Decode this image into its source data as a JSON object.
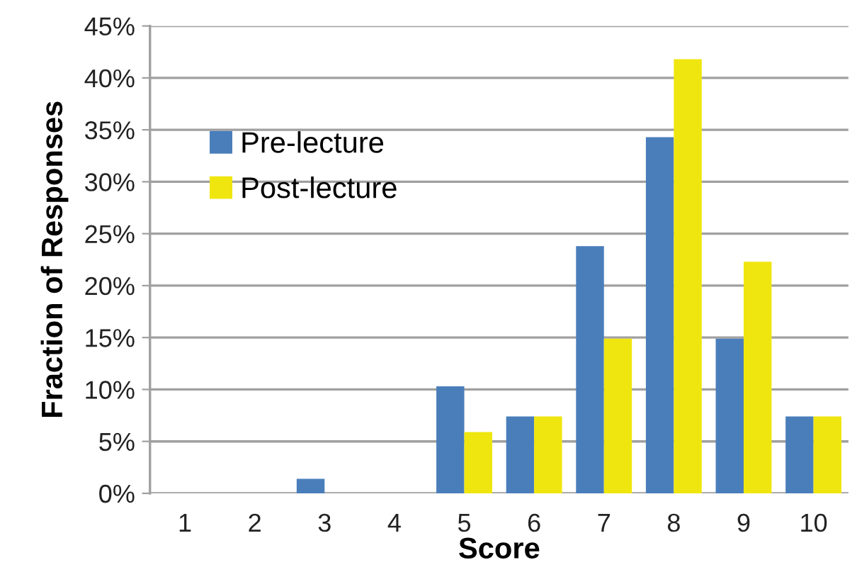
{
  "chart_data": {
    "type": "bar",
    "xlabel": "Score",
    "ylabel": "Fraction of Responses",
    "categories": [
      "1",
      "2",
      "3",
      "4",
      "5",
      "6",
      "7",
      "8",
      "9",
      "10"
    ],
    "series": [
      {
        "name": "Pre-lecture",
        "color": "#4a7ebb",
        "values": [
          0,
          0,
          1.4,
          0,
          10.3,
          7.4,
          23.8,
          34.3,
          14.9,
          7.4
        ]
      },
      {
        "name": "Post-lecture",
        "color": "#f0e60f",
        "values": [
          0,
          0,
          0,
          0,
          5.9,
          7.4,
          14.9,
          41.8,
          22.3,
          7.4
        ]
      }
    ],
    "ylim": [
      0,
      45
    ],
    "yticks": [
      {
        "value": 0,
        "label": "0%"
      },
      {
        "value": 5,
        "label": "5%"
      },
      {
        "value": 10,
        "label": "10%"
      },
      {
        "value": 15,
        "label": "15%"
      },
      {
        "value": 20,
        "label": "20%"
      },
      {
        "value": 25,
        "label": "25%"
      },
      {
        "value": 30,
        "label": "30%"
      },
      {
        "value": 35,
        "label": "35%"
      },
      {
        "value": 40,
        "label": "40%"
      },
      {
        "value": 45,
        "label": "45%"
      }
    ],
    "grid": "y",
    "legend": "upper left"
  }
}
